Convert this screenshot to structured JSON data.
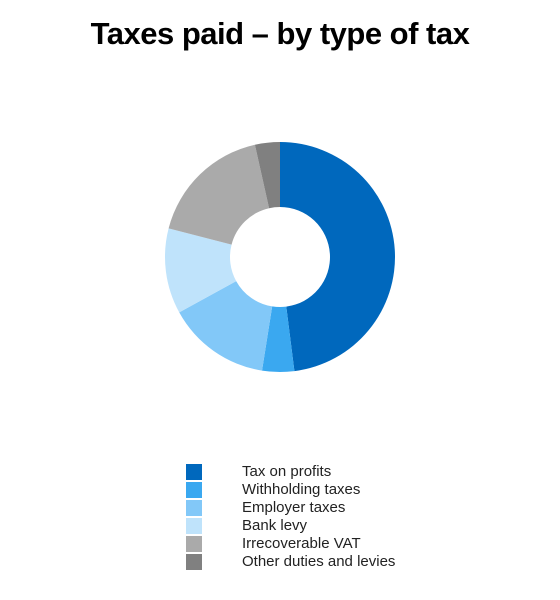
{
  "chart_data": {
    "type": "donut",
    "title": "Taxes paid – by type of tax",
    "categories": [
      "Tax on profits",
      "Withholding taxes",
      "Employer taxes",
      "Bank levy",
      "Irrecoverable VAT",
      "Other duties and levies"
    ],
    "values": [
      48,
      4.5,
      14.5,
      12,
      17.5,
      3.5
    ],
    "colors": [
      "#0068bd",
      "#3aa8f0",
      "#82c8f8",
      "#bfe3fb",
      "#aaaaaa",
      "#808080"
    ],
    "legend": "bottom"
  }
}
